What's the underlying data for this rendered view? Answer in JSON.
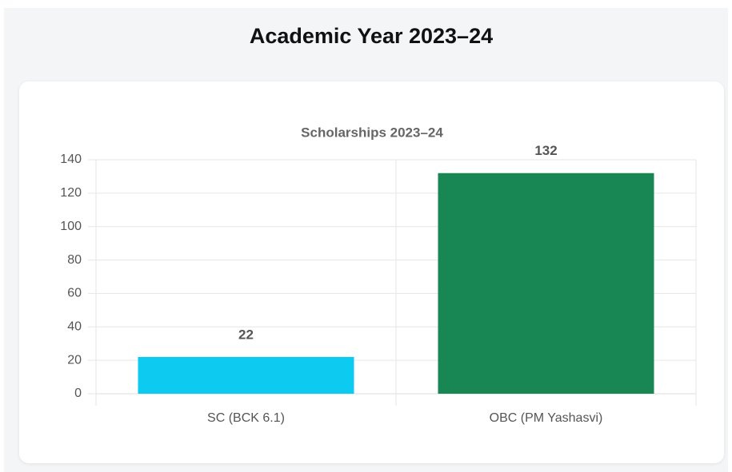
{
  "header": {
    "title": "Academic Year 2023–24"
  },
  "chart_data": {
    "type": "bar",
    "title": "Scholarships 2023–24",
    "categories": [
      "SC (BCK 6.1)",
      "OBC (PM Yashasvi)"
    ],
    "values": [
      22,
      132
    ],
    "colors": [
      "#0dcaf0",
      "#198754"
    ],
    "ylim": [
      0,
      140
    ],
    "yticks": [
      0,
      20,
      40,
      60,
      80,
      100,
      120,
      140
    ],
    "grid": true
  }
}
